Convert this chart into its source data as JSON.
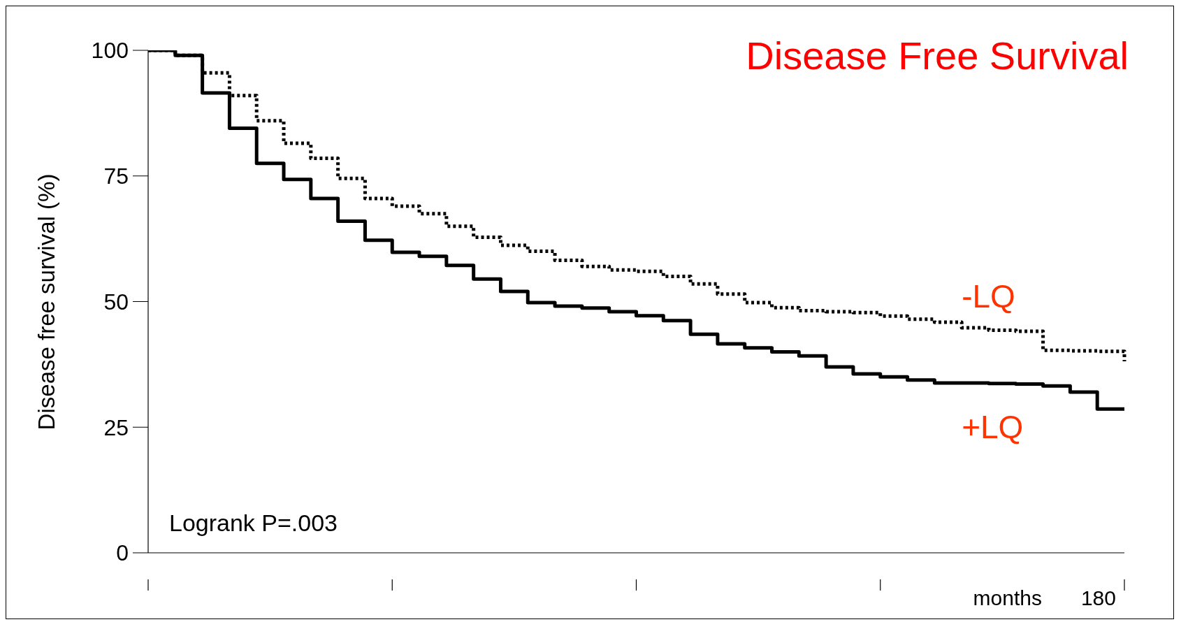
{
  "chart_data": {
    "type": "step",
    "title": "Disease Free Survival",
    "xlabel": "months",
    "ylabel": "Disease free survival (%)",
    "annotations": [
      "Logrank P=.003",
      "180"
    ],
    "categories": [
      null,
      null,
      null,
      null,
      null,
      null,
      null,
      null,
      null,
      null,
      null,
      null,
      null,
      null,
      null,
      null,
      null,
      null,
      null,
      null,
      null,
      null,
      null,
      null,
      null,
      null,
      null,
      null,
      null,
      null,
      null,
      null,
      null,
      null,
      null,
      null,
      null
    ],
    "ylim": [
      0,
      100
    ],
    "yticks": [
      0,
      25,
      50,
      75,
      100
    ],
    "grid": false,
    "legend": false,
    "series": [
      {
        "name": "-LQ",
        "color": "#000000",
        "line_style": "dotted",
        "values": [
          100,
          99,
          95.5,
          91,
          86,
          81.5,
          78.5,
          74.5,
          70.5,
          69,
          67.5,
          65,
          62.8,
          61.2,
          60,
          58.2,
          57,
          56.3,
          56,
          55,
          53.5,
          51.5,
          49.8,
          48.8,
          48.2,
          48,
          47.8,
          47.1,
          46.5,
          45.9,
          44.8,
          44.3,
          44.1,
          40.3,
          40.2,
          40.1,
          38.1
        ]
      },
      {
        "name": "+LQ",
        "color": "#000000",
        "line_style": "solid",
        "values": [
          100,
          99,
          91.5,
          84.5,
          77.5,
          74.3,
          70.5,
          66,
          62.2,
          59.8,
          59,
          57.2,
          54.5,
          52,
          49.8,
          49.1,
          48.7,
          48,
          47.2,
          46.2,
          43.5,
          41.6,
          40.8,
          40,
          39.2,
          37,
          35.6,
          35,
          34.4,
          33.8,
          33.8,
          33.7,
          33.6,
          33.2,
          32,
          28.6,
          28.6
        ]
      }
    ]
  }
}
